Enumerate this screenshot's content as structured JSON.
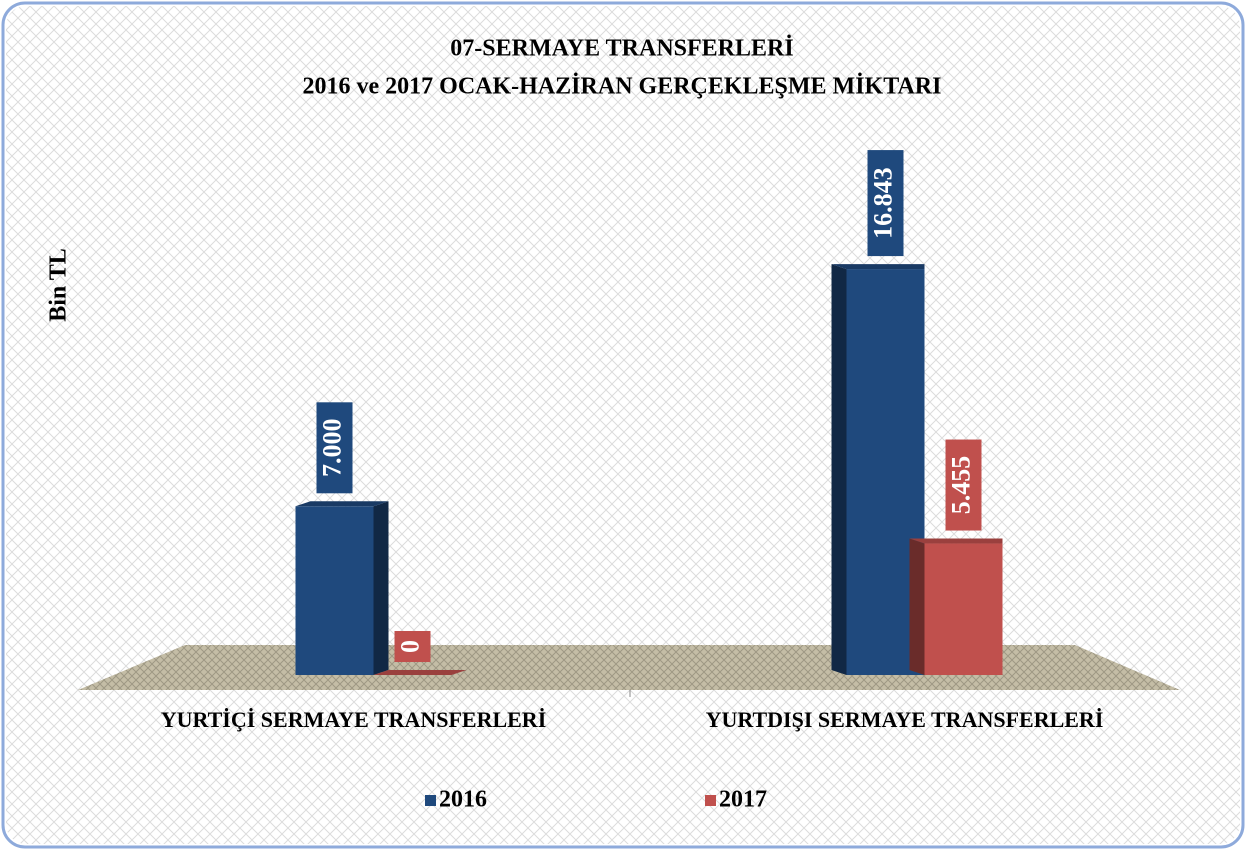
{
  "chart_data": {
    "type": "bar3d",
    "title": "07-SERMAYE TRANSFERLERİ",
    "subtitle": "2016 ve 2017 OCAK-HAZİRAN GERÇEKLEŞME MİKTARI",
    "y_label": "Bin TL",
    "categories": [
      "YURTİÇİ SERMAYE TRANSFERLERİ",
      "YURTDIŞI SERMAYE TRANSFERLERİ"
    ],
    "series": [
      {
        "name": "2016",
        "color": "#1f497d",
        "values": [
          7000,
          16843
        ],
        "value_labels": [
          "7.000",
          "16.843"
        ]
      },
      {
        "name": "2017",
        "color": "#c0504d",
        "values": [
          0,
          5455
        ],
        "value_labels": [
          "0",
          "5.455"
        ]
      }
    ],
    "ylim": [
      0,
      20000
    ],
    "legend": "bottom"
  }
}
